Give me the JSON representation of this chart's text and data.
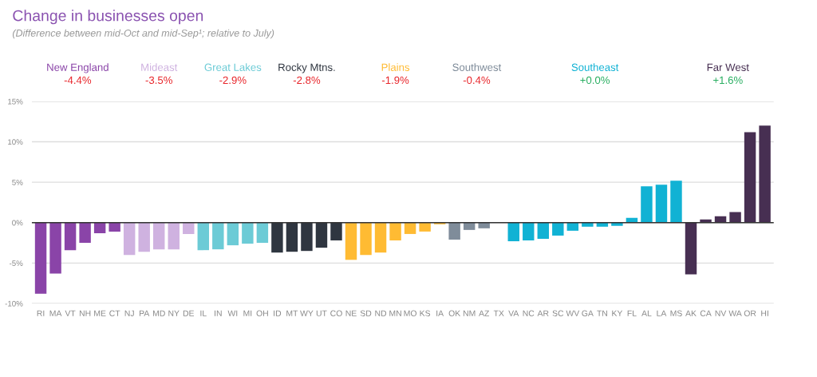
{
  "chart_data": {
    "type": "bar",
    "title": "Change in businesses open",
    "subtitle": "(Difference between mid-Oct and mid-Sep¹; relative to July)",
    "categories": [
      "RI",
      "MA",
      "VT",
      "NH",
      "ME",
      "CT",
      "NJ",
      "PA",
      "MD",
      "NY",
      "DE",
      "IL",
      "IN",
      "WI",
      "MI",
      "OH",
      "ID",
      "MT",
      "WY",
      "UT",
      "CO",
      "NE",
      "SD",
      "ND",
      "MN",
      "MO",
      "KS",
      "IA",
      "OK",
      "NM",
      "AZ",
      "TX",
      "VA",
      "NC",
      "AR",
      "SC",
      "WV",
      "GA",
      "TN",
      "KY",
      "FL",
      "AL",
      "LA",
      "MS",
      "AK",
      "CA",
      "NV",
      "WA",
      "OR",
      "HI"
    ],
    "series": [
      {
        "name": "New England",
        "color": "#8a44a8",
        "values": [
          -8.8,
          -6.3,
          -3.4,
          -2.5,
          -1.3,
          -1.1,
          null,
          null,
          null,
          null,
          null,
          null,
          null,
          null,
          null,
          null,
          null,
          null,
          null,
          null,
          null,
          null,
          null,
          null,
          null,
          null,
          null,
          null,
          null,
          null,
          null,
          null,
          null,
          null,
          null,
          null,
          null,
          null,
          null,
          null,
          null,
          null,
          null,
          null,
          null,
          null,
          null,
          null,
          null,
          null
        ]
      },
      {
        "name": "Mideast",
        "color": "#cfb2e0",
        "values": [
          null,
          null,
          null,
          null,
          null,
          null,
          -4.0,
          -3.6,
          -3.3,
          -3.3,
          -1.4,
          null,
          null,
          null,
          null,
          null,
          null,
          null,
          null,
          null,
          null,
          null,
          null,
          null,
          null,
          null,
          null,
          null,
          null,
          null,
          null,
          null,
          null,
          null,
          null,
          null,
          null,
          null,
          null,
          null,
          null,
          null,
          null,
          null,
          null,
          null,
          null,
          null,
          null,
          null
        ]
      },
      {
        "name": "Great Lakes",
        "color": "#6ccbd6",
        "values": [
          null,
          null,
          null,
          null,
          null,
          null,
          null,
          null,
          null,
          null,
          null,
          -3.4,
          -3.3,
          -2.8,
          -2.6,
          -2.5,
          null,
          null,
          null,
          null,
          null,
          null,
          null,
          null,
          null,
          null,
          null,
          null,
          null,
          null,
          null,
          null,
          null,
          null,
          null,
          null,
          null,
          null,
          null,
          null,
          null,
          null,
          null,
          null,
          null,
          null,
          null,
          null,
          null,
          null
        ]
      },
      {
        "name": "Rocky Mtns.",
        "color": "#2f3640",
        "values": [
          null,
          null,
          null,
          null,
          null,
          null,
          null,
          null,
          null,
          null,
          null,
          null,
          null,
          null,
          null,
          null,
          -3.7,
          -3.6,
          -3.5,
          -3.1,
          -2.2,
          null,
          null,
          null,
          null,
          null,
          null,
          null,
          null,
          null,
          null,
          null,
          null,
          null,
          null,
          null,
          null,
          null,
          null,
          null,
          null,
          null,
          null,
          null,
          null,
          null,
          null,
          null,
          null,
          null
        ]
      },
      {
        "name": "Plains",
        "color": "#ffbb33",
        "values": [
          null,
          null,
          null,
          null,
          null,
          null,
          null,
          null,
          null,
          null,
          null,
          null,
          null,
          null,
          null,
          null,
          null,
          null,
          null,
          null,
          null,
          -4.6,
          -4.0,
          -3.7,
          -2.2,
          -1.4,
          -1.1,
          -0.2,
          null,
          null,
          null,
          null,
          null,
          null,
          null,
          null,
          null,
          null,
          null,
          null,
          null,
          null,
          null,
          null,
          null,
          null,
          null,
          null,
          null,
          null
        ]
      },
      {
        "name": "Southwest",
        "color": "#7f8c9a",
        "values": [
          null,
          null,
          null,
          null,
          null,
          null,
          null,
          null,
          null,
          null,
          null,
          null,
          null,
          null,
          null,
          null,
          null,
          null,
          null,
          null,
          null,
          null,
          null,
          null,
          null,
          null,
          null,
          null,
          -2.1,
          -0.9,
          -0.7,
          0,
          null,
          null,
          null,
          null,
          null,
          null,
          null,
          null,
          null,
          null,
          null,
          null,
          null,
          null,
          null,
          null,
          null,
          null
        ]
      },
      {
        "name": "Southeast",
        "color": "#11b2d4",
        "values": [
          null,
          null,
          null,
          null,
          null,
          null,
          null,
          null,
          null,
          null,
          null,
          null,
          null,
          null,
          null,
          null,
          null,
          null,
          null,
          null,
          null,
          null,
          null,
          null,
          null,
          null,
          null,
          null,
          null,
          null,
          null,
          null,
          -2.3,
          -2.2,
          -2.0,
          -1.6,
          -1.0,
          -0.5,
          -0.5,
          -0.4,
          0.6,
          4.5,
          4.7,
          5.2,
          null,
          null,
          null,
          null,
          null,
          null
        ]
      },
      {
        "name": "Far West",
        "color": "#472f52",
        "values": [
          null,
          null,
          null,
          null,
          null,
          null,
          null,
          null,
          null,
          null,
          null,
          null,
          null,
          null,
          null,
          null,
          null,
          null,
          null,
          null,
          null,
          null,
          null,
          null,
          null,
          null,
          null,
          null,
          null,
          null,
          null,
          null,
          null,
          null,
          null,
          null,
          null,
          null,
          null,
          null,
          null,
          null,
          null,
          null,
          -6.4,
          0.4,
          0.8,
          1.3,
          11.2,
          12.0
        ]
      }
    ],
    "annotations": [
      "-4.4%",
      "-3.5%",
      "-2.9%",
      "-2.8%",
      "-1.9%",
      "-0.4%",
      "+0.0%",
      "+1.6%"
    ],
    "ylim": [
      -10,
      15
    ],
    "yticks": [
      {
        "value": -10,
        "label": "-10%"
      },
      {
        "value": -5,
        "label": "-5%"
      },
      {
        "value": 0,
        "label": "0%"
      },
      {
        "value": 5,
        "label": "5%"
      },
      {
        "value": 10,
        "label": "10%"
      },
      {
        "value": 15,
        "label": "15%"
      }
    ],
    "grid": "y",
    "legend": false
  }
}
